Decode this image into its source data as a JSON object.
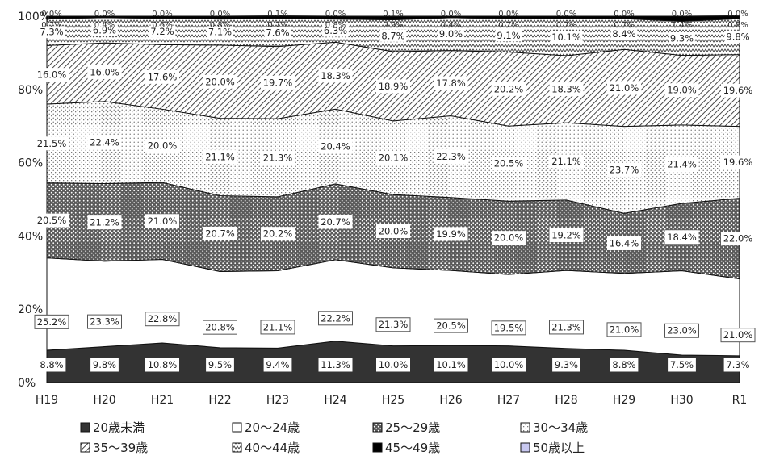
{
  "chart_data": {
    "type": "area",
    "stacked": true,
    "percent": true,
    "title": "",
    "xlabel": "",
    "ylabel": "",
    "ylim": [
      0,
      100
    ],
    "y_ticks": [
      "0%",
      "20%",
      "40%",
      "60%",
      "80%",
      "100%"
    ],
    "categories": [
      "H19",
      "H20",
      "H21",
      "H22",
      "H23",
      "H24",
      "H25",
      "H26",
      "H27",
      "H28",
      "H29",
      "H30",
      "R1"
    ],
    "legend_position": "bottom",
    "series": [
      {
        "name": "20歳未満",
        "pattern": "solid-dark",
        "values": [
          8.8,
          9.8,
          10.8,
          9.5,
          9.4,
          11.3,
          10.0,
          10.1,
          10.0,
          9.3,
          8.8,
          7.5,
          7.3
        ]
      },
      {
        "name": "20～24歳",
        "pattern": "white",
        "values": [
          25.2,
          23.3,
          22.8,
          20.8,
          21.1,
          22.2,
          21.3,
          20.5,
          19.5,
          21.3,
          21.0,
          23.0,
          21.0
        ]
      },
      {
        "name": "25～29歳",
        "pattern": "dense-dots",
        "values": [
          20.5,
          21.2,
          21.0,
          20.7,
          20.2,
          20.7,
          20.0,
          19.9,
          20.0,
          19.2,
          16.4,
          18.4,
          22.0
        ]
      },
      {
        "name": "30～34歳",
        "pattern": "light-dots",
        "values": [
          21.5,
          22.4,
          20.0,
          21.1,
          21.3,
          20.4,
          20.1,
          22.3,
          20.5,
          21.1,
          23.7,
          21.4,
          19.6
        ]
      },
      {
        "name": "35～39歳",
        "pattern": "diagonal",
        "values": [
          16.0,
          16.0,
          17.6,
          20.0,
          19.7,
          18.3,
          18.9,
          17.8,
          20.2,
          18.3,
          21.0,
          19.0,
          19.6
        ]
      },
      {
        "name": "40～44歳",
        "pattern": "zigzag",
        "values": [
          7.3,
          6.9,
          7.2,
          7.1,
          7.6,
          6.3,
          8.7,
          9.0,
          9.1,
          10.1,
          8.4,
          9.3,
          9.8
        ]
      },
      {
        "name": "45～49歳",
        "pattern": "solid-black",
        "values": [
          0.7,
          0.4,
          0.6,
          0.8,
          0.7,
          0.8,
          0.9,
          0.4,
          0.7,
          0.7,
          0.7,
          1.4,
          0.8
        ]
      },
      {
        "name": "50歳以上",
        "pattern": "lavender",
        "values": [
          0.0,
          0.0,
          0.0,
          0.0,
          0.1,
          0.0,
          0.1,
          0.0,
          0.0,
          0.0,
          0.0,
          0.0,
          0.0
        ]
      }
    ]
  }
}
